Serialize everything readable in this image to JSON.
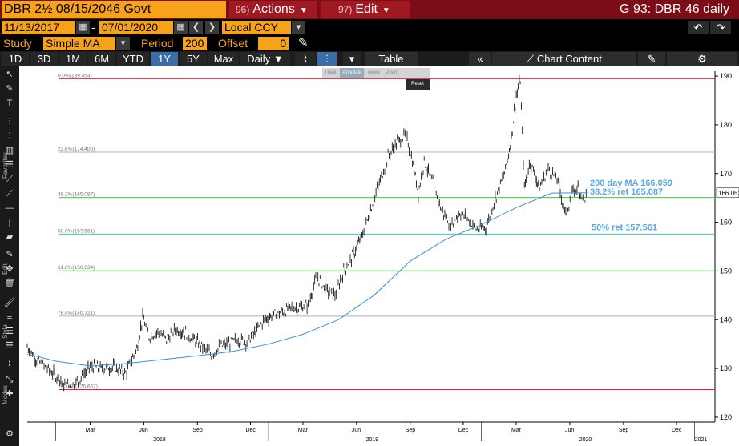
{
  "header": {
    "ticker": "DBR 2½ 08/15/2046 Govt",
    "actions_num": "96)",
    "actions_label": "Actions",
    "edit_num": "97)",
    "edit_label": "Edit",
    "right_title": "G 93: DBR 46 daily"
  },
  "range": {
    "start_date": "11/13/2017",
    "end_date": "07/01/2020",
    "currency": "Local CCY"
  },
  "study": {
    "study_label": "Study",
    "study_value": "Simple MA",
    "period_label": "Period",
    "period_value": "200",
    "offset_label": "Offset",
    "offset_value": "0"
  },
  "toolbar": {
    "periods": [
      "1D",
      "3D",
      "1M",
      "6M",
      "YTD",
      "1Y",
      "5Y",
      "Max"
    ],
    "active_period": "1Y",
    "frequency": "Daily",
    "table_label": "Table",
    "chart_content_label": "Chart Content"
  },
  "float_toolbar": {
    "items": [
      "Track",
      "Annotate",
      "News",
      "Zoom"
    ],
    "reset_label": "Reset"
  },
  "left_labels": [
    "Favorites",
    "Edit",
    "Style",
    "Modes"
  ],
  "chart_data": {
    "type": "line",
    "title": "",
    "y_ticks": [
      120,
      130,
      140,
      150,
      160,
      170,
      180,
      190
    ],
    "ylim": [
      119,
      191
    ],
    "last_price": "166.052",
    "x_month_labels": [
      "Mar",
      "Jun",
      "Sep",
      "Dec",
      "Mar",
      "Jun",
      "Sep",
      "Dec",
      "Mar",
      "Jun",
      "Sep",
      "Dec"
    ],
    "x_year_labels": [
      "2018",
      "2019",
      "2020",
      "2021"
    ],
    "fib_levels": [
      {
        "label": "0.0%(189.454)",
        "value": 189.454,
        "color": "#e0232d"
      },
      {
        "label": "23.6%(174.400)",
        "value": 174.4,
        "color": "#b0b0b0"
      },
      {
        "label": "38.2%(165.087)",
        "value": 165.087,
        "color": "#31d431"
      },
      {
        "label": "50.0%(157.561)",
        "value": 157.561,
        "color": "#29c8d8"
      },
      {
        "label": "61.8%(150.034)",
        "value": 150.034,
        "color": "#31d431"
      },
      {
        "label": "76.4%(140.721)",
        "value": 140.721,
        "color": "#b0b0b0"
      },
      {
        "label": "100.0%(125.667)",
        "value": 125.667,
        "color": "#e0232d"
      }
    ],
    "annotations": [
      {
        "text": "200 day MA 166.059",
        "color": "#5aa9e6"
      },
      {
        "text": "38.2% ret 165.087",
        "color": "#5aa9e6"
      },
      {
        "text": "50% ret 157.561",
        "color": "#5aa9e6"
      }
    ],
    "series": [
      {
        "name": "",
        "color": "#000000",
        "points": [
          [
            "2017-11-13",
            134.5
          ],
          [
            "2017-12-01",
            131.5
          ],
          [
            "2018-01-01",
            128.5
          ],
          [
            "2018-01-20",
            126.2
          ],
          [
            "2018-02-10",
            127.5
          ],
          [
            "2018-03-01",
            130.5
          ],
          [
            "2018-03-20",
            130.0
          ],
          [
            "2018-04-10",
            130.3
          ],
          [
            "2018-05-01",
            129.0
          ],
          [
            "2018-05-20",
            134.0
          ],
          [
            "2018-05-30",
            140.5
          ],
          [
            "2018-06-10",
            136.5
          ],
          [
            "2018-06-25",
            137.5
          ],
          [
            "2018-07-10",
            136.0
          ],
          [
            "2018-07-25",
            138.0
          ],
          [
            "2018-08-10",
            137.5
          ],
          [
            "2018-08-25",
            136.0
          ],
          [
            "2018-09-10",
            134.5
          ],
          [
            "2018-09-25",
            132.8
          ],
          [
            "2018-10-10",
            134.5
          ],
          [
            "2018-10-25",
            135.0
          ],
          [
            "2018-11-10",
            136.0
          ],
          [
            "2018-11-25",
            135.5
          ],
          [
            "2018-12-10",
            137.5
          ],
          [
            "2018-12-25",
            140.0
          ],
          [
            "2019-01-10",
            141.0
          ],
          [
            "2019-01-25",
            141.5
          ],
          [
            "2019-02-10",
            142.5
          ],
          [
            "2019-02-25",
            142.5
          ],
          [
            "2019-03-10",
            143.0
          ],
          [
            "2019-03-25",
            149.0
          ],
          [
            "2019-04-10",
            146.0
          ],
          [
            "2019-04-25",
            145.0
          ],
          [
            "2019-05-10",
            150.0
          ],
          [
            "2019-05-25",
            153.0
          ],
          [
            "2019-06-10",
            157.0
          ],
          [
            "2019-06-25",
            162.5
          ],
          [
            "2019-07-10",
            168.0
          ],
          [
            "2019-07-25",
            173.5
          ],
          [
            "2019-08-10",
            176.5
          ],
          [
            "2019-08-25",
            178.0
          ],
          [
            "2019-09-05",
            172.5
          ],
          [
            "2019-09-15",
            166.0
          ],
          [
            "2019-09-25",
            172.5
          ],
          [
            "2019-10-10",
            168.0
          ],
          [
            "2019-10-25",
            162.5
          ],
          [
            "2019-11-10",
            159.5
          ],
          [
            "2019-11-25",
            162.0
          ],
          [
            "2019-12-10",
            160.5
          ],
          [
            "2019-12-25",
            158.5
          ],
          [
            "2020-01-10",
            159.0
          ],
          [
            "2020-01-25",
            165.0
          ],
          [
            "2020-02-10",
            170.0
          ],
          [
            "2020-02-20",
            176.0
          ],
          [
            "2020-03-01",
            186.0
          ],
          [
            "2020-03-08",
            189.0
          ],
          [
            "2020-03-15",
            167.0
          ],
          [
            "2020-03-25",
            172.5
          ],
          [
            "2020-04-10",
            167.0
          ],
          [
            "2020-04-25",
            171.0
          ],
          [
            "2020-05-10",
            169.0
          ],
          [
            "2020-05-25",
            161.5
          ],
          [
            "2020-06-05",
            166.0
          ],
          [
            "2020-06-15",
            167.5
          ],
          [
            "2020-06-25",
            164.5
          ],
          [
            "2020-07-01",
            166.1
          ]
        ]
      },
      {
        "name": "200 day MA",
        "color": "#3b8fd8",
        "points": [
          [
            "2017-11-13",
            133.0
          ],
          [
            "2018-01-01",
            131.5
          ],
          [
            "2018-03-01",
            130.5
          ],
          [
            "2018-05-01",
            131.0
          ],
          [
            "2018-07-01",
            131.8
          ],
          [
            "2018-09-01",
            132.6
          ],
          [
            "2018-11-01",
            133.5
          ],
          [
            "2019-01-01",
            135.0
          ],
          [
            "2019-03-01",
            137.0
          ],
          [
            "2019-05-01",
            140.0
          ],
          [
            "2019-07-01",
            145.0
          ],
          [
            "2019-09-01",
            152.0
          ],
          [
            "2019-11-01",
            156.5
          ],
          [
            "2020-01-01",
            159.5
          ],
          [
            "2020-03-01",
            163.0
          ],
          [
            "2020-05-01",
            166.0
          ],
          [
            "2020-07-01",
            166.059
          ]
        ]
      }
    ]
  }
}
